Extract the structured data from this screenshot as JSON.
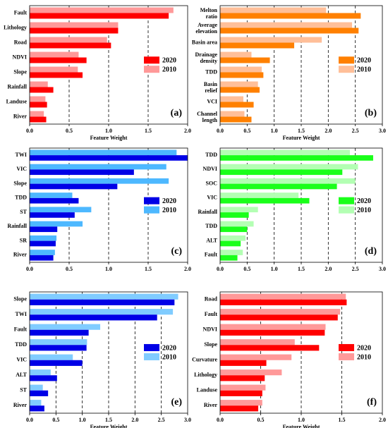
{
  "chart_data": [
    {
      "type": "bar",
      "panel_label": "(a)",
      "xlabel": "Feature Weight",
      "xlim": [
        0,
        2.0
      ],
      "xticks": [
        "0.0",
        "0.5",
        "1.0",
        "1.5",
        "2.0"
      ],
      "categories": [
        "Fault",
        "Lithology",
        "Road",
        "NDVI",
        "Slope",
        "Rainfall",
        "Landuse",
        "River"
      ],
      "series": [
        {
          "name": "2020",
          "color": "#ff0000",
          "values": [
            1.76,
            1.12,
            1.03,
            0.72,
            0.67,
            0.3,
            0.22,
            0.21
          ]
        },
        {
          "name": "2010",
          "color": "#ff9999",
          "values": [
            1.82,
            1.12,
            0.98,
            0.62,
            0.61,
            0.23,
            0.2,
            0.18
          ]
        }
      ],
      "legend_position": "right"
    },
    {
      "type": "bar",
      "panel_label": "(b)",
      "xlabel": "Feature Weight",
      "xlim": [
        0,
        3.0
      ],
      "xticks": [
        "0.0",
        "0.5",
        "1.0",
        "1.5",
        "2.0",
        "2.5",
        "3.0"
      ],
      "categories": [
        "Melton\nratio",
        "Average\nelevation",
        "Basin area",
        "Drainage\ndensity",
        "TDD",
        "Basin\nrelief",
        "VCI",
        "Channel\nlength"
      ],
      "series": [
        {
          "name": "2020",
          "color": "#ff8000",
          "values": [
            2.6,
            2.56,
            1.37,
            0.92,
            0.8,
            0.73,
            0.62,
            0.58
          ]
        },
        {
          "name": "2010",
          "color": "#ffbf99",
          "values": [
            1.96,
            2.44,
            1.88,
            0.58,
            0.77,
            0.7,
            0.43,
            0.45
          ]
        }
      ],
      "legend_position": "right"
    },
    {
      "type": "bar",
      "panel_label": "(c)",
      "xlabel": "",
      "xlim": [
        0,
        2.0
      ],
      "xticks": [
        "0.0",
        "0.5",
        "1.0",
        "1.5",
        "2.0"
      ],
      "categories": [
        "TWI",
        "VIC",
        "Slope",
        "TDD",
        "ST",
        "Rainfall",
        "SR",
        "River"
      ],
      "series": [
        {
          "name": "2020",
          "color": "#0000e6",
          "values": [
            2.0,
            1.32,
            1.11,
            0.62,
            0.57,
            0.35,
            0.33,
            0.3
          ]
        },
        {
          "name": "2010",
          "color": "#4db8ff",
          "values": [
            1.86,
            1.73,
            1.76,
            0.54,
            0.78,
            0.67,
            0.34,
            0.32
          ]
        }
      ],
      "legend_position": "right"
    },
    {
      "type": "bar",
      "panel_label": "(d)",
      "xlabel": "",
      "xlim": [
        0,
        3.0
      ],
      "xticks": [
        "0.0",
        "0.5",
        "1.0",
        "1.5",
        "2.0",
        "2.5",
        "3.0"
      ],
      "categories": [
        "TDD",
        "NDVI",
        "SOC",
        "VIC",
        "Rainfall",
        "TDD",
        "ALT",
        "Fault"
      ],
      "series": [
        {
          "name": "2020",
          "color": "#1aff1a",
          "values": [
            2.83,
            2.26,
            2.16,
            1.65,
            0.53,
            0.5,
            0.38,
            0.32
          ]
        },
        {
          "name": "2010",
          "color": "#b3ffb3",
          "values": [
            2.4,
            2.55,
            2.5,
            1.45,
            0.7,
            0.62,
            0.47,
            0.42
          ]
        }
      ],
      "legend_position": "right"
    },
    {
      "type": "bar",
      "panel_label": "(e)",
      "xlabel": "Feature Weight",
      "xlim": [
        0,
        3.0
      ],
      "xticks": [
        "0.0",
        "0.5",
        "1.0",
        "1.5",
        "2.0",
        "2.5",
        "3.0"
      ],
      "categories": [
        "Slope",
        "TWI",
        "Fault",
        "TDD",
        "VIC",
        "ALT",
        "ST",
        "River"
      ],
      "series": [
        {
          "name": "2020",
          "color": "#0000e6",
          "values": [
            2.75,
            2.42,
            1.12,
            1.08,
            1.0,
            0.52,
            0.35,
            0.28
          ]
        },
        {
          "name": "2010",
          "color": "#80ccff",
          "values": [
            2.82,
            2.72,
            1.34,
            1.09,
            0.82,
            0.4,
            0.25,
            0.22
          ]
        }
      ],
      "legend_position": "right"
    },
    {
      "type": "bar",
      "panel_label": "(f)",
      "xlabel": "Feature Weight",
      "xlim": [
        0,
        2.0
      ],
      "xticks": [
        "0.0",
        "0.5",
        "1.0",
        "1.5",
        "2.0"
      ],
      "categories": [
        "Road",
        "Fault",
        "NDVI",
        "Slope",
        "Curvature",
        "Lithology",
        "Landuse",
        "River"
      ],
      "series": [
        {
          "name": "2020",
          "color": "#ff0000",
          "values": [
            1.56,
            1.45,
            1.29,
            1.22,
            0.57,
            0.55,
            0.52,
            0.47
          ]
        },
        {
          "name": "2010",
          "color": "#ff9999",
          "values": [
            1.55,
            1.48,
            1.3,
            0.92,
            0.88,
            0.76,
            0.56,
            0.52
          ]
        }
      ],
      "legend_position": "right"
    }
  ]
}
